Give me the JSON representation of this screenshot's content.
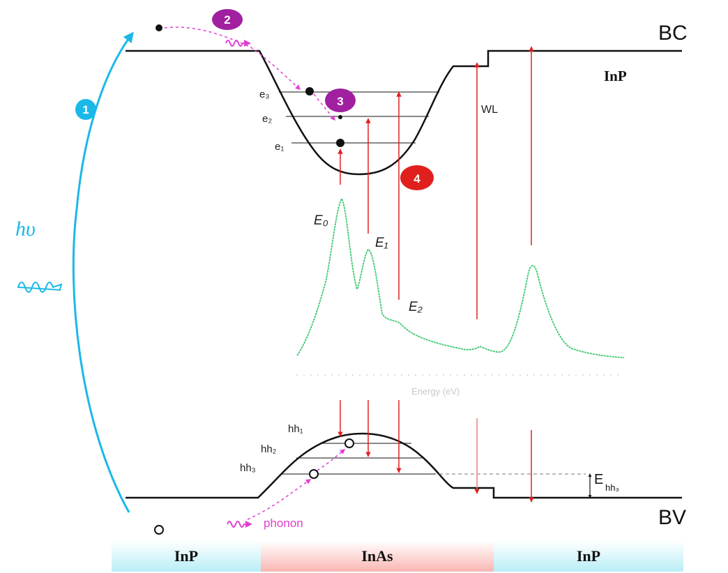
{
  "labels": {
    "bc": "BC",
    "bv": "BV",
    "inp_top": "InP",
    "wl": "WL",
    "hv": "hυ",
    "phonon": "phonon",
    "e_levels": [
      "e₃",
      "e₂",
      "e₁"
    ],
    "hh_levels": [
      "hh₁",
      "hh₂",
      "hh₃"
    ],
    "peaks": [
      "E₀",
      "E₁",
      "E₂"
    ],
    "ehh3": "E",
    "ehh3_sub": "hh₃",
    "energy_axis": "Energy (eV)"
  },
  "steps": [
    {
      "num": "1",
      "color": "#1ab8e8"
    },
    {
      "num": "2",
      "color": "#a020a0"
    },
    {
      "num": "3",
      "color": "#a020a0"
    },
    {
      "num": "4",
      "color": "#e0201c"
    }
  ],
  "materials": [
    {
      "name": "InP",
      "color": "#c8f0f6"
    },
    {
      "name": "InAs",
      "color": "#fbc9c6"
    },
    {
      "name": "InP",
      "color": "#c8f0f6"
    }
  ],
  "colors": {
    "band": "#111111",
    "transition": "#e02020",
    "spectrum": "#3cc870",
    "excitation": "#1ab8e8",
    "phonon": "#e040d0"
  }
}
